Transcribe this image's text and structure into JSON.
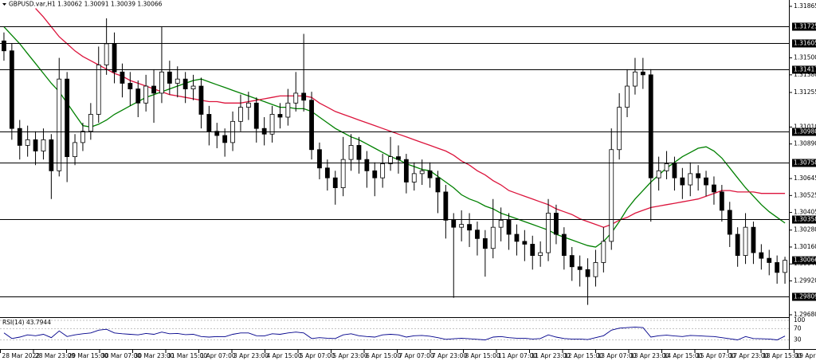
{
  "chart_data": [
    {
      "type": "candlestick",
      "title": "GBPUSD.var,H1  1.30062 1.30091 1.30039 1.30066",
      "open": [
        1.3162,
        1.3155,
        1.31,
        1.3088,
        1.3092,
        1.3084,
        1.3092,
        1.307,
        1.3135,
        1.308,
        1.309,
        1.3098,
        1.311,
        1.3145,
        1.316,
        1.314,
        1.3132,
        1.3128,
        1.3118,
        1.313,
        1.3125,
        1.314,
        1.3132,
        1.3135,
        1.3128,
        1.313,
        1.311,
        1.3098,
        1.3095,
        1.309,
        1.3105,
        1.3115,
        1.3118,
        1.31,
        1.3096,
        1.311,
        1.3108,
        1.3118,
        1.3125,
        1.312,
        1.3085,
        1.3072,
        1.3065,
        1.3058,
        1.3078,
        1.3088,
        1.3078,
        1.307,
        1.3065,
        1.3075,
        1.308,
        1.3078,
        1.3062,
        1.3068,
        1.307,
        1.3065,
        1.3055,
        1.3035,
        1.303,
        1.3032,
        1.3028,
        1.3022,
        1.3015,
        1.303,
        1.3035,
        1.3025,
        1.302,
        1.3018,
        1.301,
        1.3012,
        1.304,
        1.3025,
        1.301,
        1.3002,
        1.3,
        1.2995,
        1.3005,
        1.302,
        1.3085,
        1.3115,
        1.313,
        1.314,
        1.3138,
        1.3065,
        1.307,
        1.3075,
        1.3065,
        1.306,
        1.3068,
        1.3065,
        1.306,
        1.3055,
        1.3042,
        1.3025,
        1.301,
        1.303,
        1.3012,
        1.3008,
        1.3005,
        1.2998
      ],
      "high": [
        1.3168,
        1.316,
        1.3106,
        1.3102,
        1.3098,
        1.31,
        1.3096,
        1.315,
        1.314,
        1.3096,
        1.3104,
        1.3118,
        1.3158,
        1.3178,
        1.3168,
        1.3146,
        1.314,
        1.3134,
        1.3138,
        1.3142,
        1.3172,
        1.3148,
        1.3144,
        1.314,
        1.3138,
        1.3136,
        1.3116,
        1.3104,
        1.31,
        1.3112,
        1.3124,
        1.3126,
        1.3122,
        1.3108,
        1.3116,
        1.3118,
        1.3128,
        1.314,
        1.3167,
        1.3126,
        1.309,
        1.3078,
        1.307,
        1.3094,
        1.3096,
        1.3094,
        1.3084,
        1.3076,
        1.3082,
        1.3094,
        1.3088,
        1.3082,
        1.3076,
        1.3078,
        1.3076,
        1.307,
        1.306,
        1.304,
        1.3042,
        1.304,
        1.3034,
        1.3028,
        1.305,
        1.3044,
        1.304,
        1.3032,
        1.3028,
        1.3024,
        1.302,
        1.305,
        1.3046,
        1.303,
        1.3016,
        1.301,
        1.3008,
        1.3014,
        1.303,
        1.31,
        1.3125,
        1.3142,
        1.315,
        1.315,
        1.3142,
        1.308,
        1.3084,
        1.308,
        1.3072,
        1.3076,
        1.3074,
        1.307,
        1.3066,
        1.306,
        1.3048,
        1.303,
        1.304,
        1.3034,
        1.3018,
        1.3014,
        1.301,
        1.30091
      ],
      "low": [
        1.3148,
        1.3092,
        1.3078,
        1.308,
        1.3074,
        1.3078,
        1.305,
        1.3066,
        1.3062,
        1.3074,
        1.3084,
        1.3092,
        1.3104,
        1.3138,
        1.3132,
        1.3122,
        1.3116,
        1.3108,
        1.3112,
        1.3104,
        1.3118,
        1.3124,
        1.3122,
        1.3118,
        1.312,
        1.31,
        1.3088,
        1.3086,
        1.308,
        1.3084,
        1.3098,
        1.3106,
        1.309,
        1.3088,
        1.309,
        1.31,
        1.3102,
        1.3112,
        1.3112,
        1.3078,
        1.3064,
        1.3056,
        1.3046,
        1.3052,
        1.307,
        1.3068,
        1.3058,
        1.3052,
        1.3058,
        1.307,
        1.3068,
        1.3054,
        1.3056,
        1.306,
        1.3058,
        1.304,
        1.3022,
        1.298,
        1.302,
        1.3016,
        1.301,
        1.2995,
        1.3008,
        1.302,
        1.3014,
        1.301,
        1.3006,
        1.3,
        1.3002,
        1.3006,
        1.3018,
        1.3,
        1.2992,
        1.2988,
        1.2975,
        1.2988,
        1.2998,
        1.3014,
        1.3078,
        1.3108,
        1.3124,
        1.3128,
        1.3034,
        1.3056,
        1.3064,
        1.3056,
        1.305,
        1.3052,
        1.3056,
        1.3052,
        1.3046,
        1.3034,
        1.3016,
        1.3002,
        1.3004,
        1.3004,
        1.3,
        1.2996,
        1.299,
        1.299
      ],
      "close": [
        1.3155,
        1.31,
        1.3088,
        1.3092,
        1.3084,
        1.3092,
        1.307,
        1.3135,
        1.308,
        1.309,
        1.3098,
        1.311,
        1.3145,
        1.316,
        1.314,
        1.3132,
        1.3128,
        1.3118,
        1.313,
        1.3125,
        1.314,
        1.3132,
        1.3135,
        1.3128,
        1.313,
        1.311,
        1.3098,
        1.3095,
        1.309,
        1.3105,
        1.3115,
        1.3118,
        1.31,
        1.3096,
        1.311,
        1.3108,
        1.3118,
        1.3125,
        1.312,
        1.3085,
        1.3072,
        1.3065,
        1.3058,
        1.3078,
        1.3088,
        1.3078,
        1.307,
        1.3065,
        1.3075,
        1.308,
        1.3078,
        1.3062,
        1.3068,
        1.307,
        1.3065,
        1.3055,
        1.3035,
        1.303,
        1.3032,
        1.3028,
        1.3022,
        1.3015,
        1.303,
        1.3035,
        1.3025,
        1.302,
        1.3018,
        1.301,
        1.3012,
        1.304,
        1.3025,
        1.301,
        1.3002,
        1.3,
        1.2995,
        1.3005,
        1.302,
        1.3085,
        1.3115,
        1.313,
        1.314,
        1.3138,
        1.3065,
        1.307,
        1.3075,
        1.3065,
        1.306,
        1.3068,
        1.3065,
        1.306,
        1.3055,
        1.3042,
        1.3025,
        1.301,
        1.303,
        1.3012,
        1.3008,
        1.3005,
        1.2998,
        1.30066
      ],
      "bull_color": "#ffffff",
      "bear_color": "#000000",
      "moving_averages": [
        {
          "color": "#008000",
          "values": [
            1.3172,
            1.3166,
            1.316,
            1.3153,
            1.3146,
            1.3139,
            1.3132,
            1.3126,
            1.3118,
            1.311,
            1.3102,
            1.3101,
            1.3103,
            1.3106,
            1.311,
            1.3113,
            1.3116,
            1.3119,
            1.3122,
            1.3124,
            1.3126,
            1.3128,
            1.313,
            1.3132,
            1.3134,
            1.3135,
            1.3133,
            1.3131,
            1.3129,
            1.3127,
            1.3125,
            1.3123,
            1.3121,
            1.3119,
            1.3117,
            1.3115,
            1.3115,
            1.3114,
            1.3114,
            1.3112,
            1.3108,
            1.3104,
            1.31,
            1.3097,
            1.3094,
            1.3092,
            1.3089,
            1.3086,
            1.3083,
            1.308,
            1.3078,
            1.3075,
            1.3073,
            1.3071,
            1.307,
            1.3066,
            1.3062,
            1.3058,
            1.3053,
            1.305,
            1.3048,
            1.3045,
            1.3043,
            1.304,
            1.3038,
            1.3036,
            1.3034,
            1.3032,
            1.303,
            1.3028,
            1.3025,
            1.3023,
            1.3021,
            1.3019,
            1.3017,
            1.3016,
            1.302,
            1.3026,
            1.3034,
            1.3043,
            1.305,
            1.3056,
            1.3062,
            1.3067,
            1.3072,
            1.3076,
            1.308,
            1.3083,
            1.3086,
            1.3087,
            1.3084,
            1.3079,
            1.3072,
            1.3065,
            1.3058,
            1.3052,
            1.3046,
            1.3041,
            1.3037,
            1.3033
          ]
        },
        {
          "color": "#dc143c",
          "values": [
            null,
            null,
            null,
            null,
            1.3185,
            1.3179,
            1.3172,
            1.3165,
            1.316,
            1.3155,
            1.3151,
            1.3148,
            1.3145,
            1.3142,
            1.3139,
            1.3137,
            1.3134,
            1.3132,
            1.313,
            1.3128,
            1.3126,
            1.3124,
            1.3123,
            1.3122,
            1.3121,
            1.312,
            1.3119,
            1.3119,
            1.3118,
            1.3118,
            1.3118,
            1.3119,
            1.312,
            1.3121,
            1.3122,
            1.3123,
            1.3123,
            1.3123,
            1.3123,
            1.3122,
            1.3118,
            1.3115,
            1.3112,
            1.311,
            1.3108,
            1.3106,
            1.3104,
            1.3102,
            1.31,
            1.3098,
            1.3096,
            1.3094,
            1.3092,
            1.309,
            1.3088,
            1.3086,
            1.3084,
            1.3081,
            1.3077,
            1.3074,
            1.307,
            1.3067,
            1.3063,
            1.306,
            1.3056,
            1.3054,
            1.3052,
            1.305,
            1.3048,
            1.3046,
            1.3043,
            1.3041,
            1.3039,
            1.3036,
            1.3034,
            1.3032,
            1.303,
            1.3032,
            1.3035,
            1.3037,
            1.304,
            1.3042,
            1.3044,
            1.3045,
            1.3046,
            1.3047,
            1.3048,
            1.3049,
            1.305,
            1.3052,
            1.3054,
            1.3056,
            1.3056,
            1.3055,
            1.3055,
            1.3055,
            1.3054,
            1.3054,
            1.3054,
            1.3054
          ]
        }
      ],
      "ylim": [
        1.29663,
        1.3191
      ],
      "yticks": [
        1.31865,
        {
          "value": 1.315,
          "label": "1.31500"
        },
        {
          "value": 1.3138,
          "label": "1.31380"
        },
        1.31255,
        {
          "value": 1.3101,
          "label": "1.31010"
        },
        {
          "value": 1.3089,
          "label": "1.30890"
        },
        1.30645,
        1.30525,
        1.30405,
        {
          "value": 1.3028,
          "label": "1.30280"
        },
        {
          "value": 1.3016,
          "label": "1.30160"
        },
        {
          "value": 1.3004,
          "label": "1.30040"
        },
        {
          "value": 1.2992,
          "label": "1.29920"
        },
        {
          "value": 1.2968,
          "label": "1.29680"
        }
      ],
      "levels": [
        1.31725,
        1.31605,
        1.31417,
        {
          "value": 1.3098,
          "label": "1.30980"
        },
        1.30758,
        1.30358,
        1.29809
      ],
      "last_price": 1.30066,
      "x_labels": [
        "28 Mar 2022",
        "28 Mar 23:00",
        "29 Mar 15:00",
        "30 Mar 07:00",
        "30 Mar 23:00",
        "31 Mar 15:00",
        "1 Apr 07:00",
        "3 Apr 23:00",
        "4 Apr 15:00",
        "5 Apr 07:00",
        "5 Apr 23:00",
        "6 Apr 15:00",
        "7 Apr 07:00",
        "7 Apr 23:00",
        "8 Apr 15:00",
        "11 Apr 07:00",
        "11 Apr 23:00",
        "12 Apr 15:00",
        "13 Apr 07:00",
        "13 Apr 23:00",
        "14 Apr 15:00",
        "15 Apr 07:00",
        "17 Apr 23:00",
        "18 Apr 15:00",
        "19 Apr 07:00"
      ]
    },
    {
      "type": "line",
      "title": "RSI(14) 43.7944",
      "color": "#00008b",
      "values": [
        55,
        35,
        40,
        48,
        45,
        50,
        38,
        62,
        42,
        48,
        52,
        55,
        65,
        68,
        55,
        52,
        50,
        48,
        53,
        50,
        58,
        52,
        53,
        49,
        50,
        42,
        40,
        42,
        41,
        50,
        55,
        55,
        45,
        44,
        52,
        50,
        55,
        58,
        55,
        35,
        38,
        36,
        35,
        48,
        52,
        45,
        42,
        40,
        48,
        50,
        48,
        40,
        45,
        46,
        43,
        38,
        32,
        34,
        36,
        34,
        32,
        30,
        40,
        42,
        38,
        36,
        36,
        33,
        35,
        48,
        40,
        35,
        33,
        33,
        31,
        38,
        45,
        65,
        72,
        74,
        76,
        74,
        40,
        45,
        47,
        44,
        42,
        46,
        45,
        43,
        42,
        38,
        34,
        30,
        42,
        35,
        34,
        33,
        30,
        43.7944
      ],
      "ylim": [
        0,
        100
      ],
      "yticks": [
        100,
        70,
        30
      ]
    }
  ]
}
